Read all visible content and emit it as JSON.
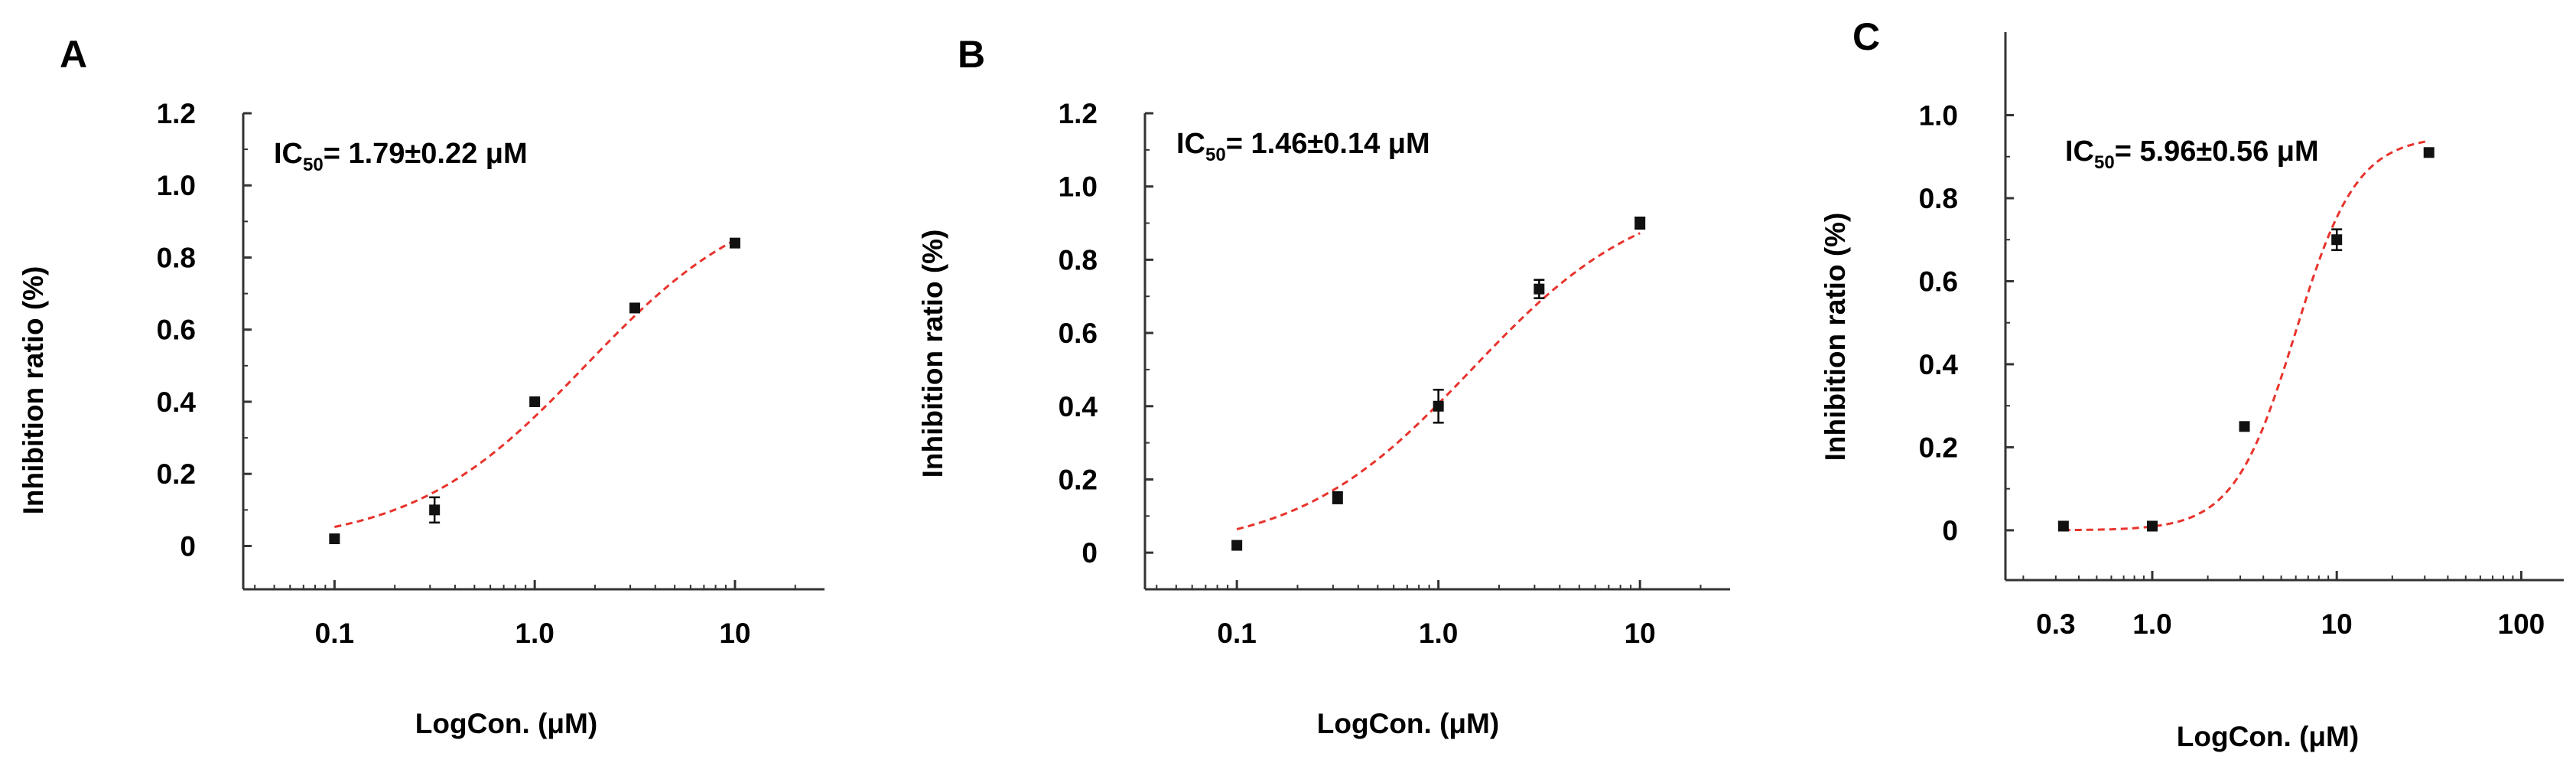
{
  "colors": {
    "axis": "#333333",
    "point": "#111111",
    "fit": "#e8332c"
  },
  "chart_data": [
    {
      "type": "scatter",
      "panel": "A",
      "title": "",
      "xlabel": "LogCon.  (μM)",
      "ylabel": "Inhibition  ratio (%)",
      "xscale": "log",
      "xlim": [
        0.035,
        28
      ],
      "ylim": [
        -0.12,
        1.2
      ],
      "xticks": [
        {
          "value": 0.1,
          "label": "0.1"
        },
        {
          "value": 1,
          "label": "1.0"
        },
        {
          "value": 10,
          "label": "10"
        }
      ],
      "yticks": [
        {
          "value": 0,
          "label": "0"
        },
        {
          "value": 0.2,
          "label": "0.2"
        },
        {
          "value": 0.4,
          "label": "0.4"
        },
        {
          "value": 0.6,
          "label": "0.6"
        },
        {
          "value": 0.8,
          "label": "0.8"
        },
        {
          "value": 1.0,
          "label": "1.0"
        },
        {
          "value": 1.2,
          "label": "1.2"
        }
      ],
      "annotation": {
        "prefix": "IC",
        "sub": "50",
        "text": "= 1.79±0.22 μM"
      },
      "points": [
        {
          "x": 0.1,
          "y": 0.02,
          "err": 0.0
        },
        {
          "x": 0.316,
          "y": 0.1,
          "err": 0.035
        },
        {
          "x": 1.0,
          "y": 0.4,
          "err": 0.0
        },
        {
          "x": 3.16,
          "y": 0.66,
          "err": 0.0
        },
        {
          "x": 10,
          "y": 0.84,
          "err": 0.0
        }
      ],
      "fit": {
        "bottom": 0.0,
        "top": 1.0,
        "ic50": 1.79,
        "hill": 1.0,
        "x_range": [
          0.1,
          10
        ]
      }
    },
    {
      "type": "scatter",
      "panel": "B",
      "title": "",
      "xlabel": "LogCon.  (μM)",
      "ylabel": "Inhibition  ratio (%)",
      "xscale": "log",
      "xlim": [
        0.035,
        28
      ],
      "ylim": [
        -0.1,
        1.2
      ],
      "xticks": [
        {
          "value": 0.1,
          "label": "0.1"
        },
        {
          "value": 1,
          "label": "1.0"
        },
        {
          "value": 10,
          "label": "10"
        }
      ],
      "yticks": [
        {
          "value": 0,
          "label": "0"
        },
        {
          "value": 0.2,
          "label": "0.2"
        },
        {
          "value": 0.4,
          "label": "0.4"
        },
        {
          "value": 0.6,
          "label": "0.6"
        },
        {
          "value": 0.8,
          "label": "0.8"
        },
        {
          "value": 1.0,
          "label": "1.0"
        },
        {
          "value": 1.2,
          "label": "1.2"
        }
      ],
      "annotation": {
        "prefix": "IC",
        "sub": "50",
        "text": "= 1.46±0.14 μM"
      },
      "points": [
        {
          "x": 0.1,
          "y": 0.02,
          "err": 0.0
        },
        {
          "x": 0.316,
          "y": 0.15,
          "err": 0.015
        },
        {
          "x": 1.0,
          "y": 0.4,
          "err": 0.045
        },
        {
          "x": 3.16,
          "y": 0.72,
          "err": 0.025
        },
        {
          "x": 10,
          "y": 0.9,
          "err": 0.015
        }
      ],
      "fit": {
        "bottom": 0.0,
        "top": 1.0,
        "ic50": 1.46,
        "hill": 1.0,
        "x_range": [
          0.1,
          10
        ]
      }
    },
    {
      "type": "scatter",
      "panel": "C",
      "title": "",
      "xlabel": "LogCon.  (μM)",
      "ylabel": "Inhibition  ratio (%)",
      "xscale": "log",
      "xlim": [
        0.16,
        170
      ],
      "ylim": [
        -0.12,
        1.2
      ],
      "xticks": [
        {
          "value": 0.3,
          "label": "0.3"
        },
        {
          "value": 1,
          "label": "1.0"
        },
        {
          "value": 10,
          "label": "10"
        },
        {
          "value": 100,
          "label": "100"
        }
      ],
      "yticks": [
        {
          "value": 0,
          "label": "0"
        },
        {
          "value": 0.2,
          "label": "0.2"
        },
        {
          "value": 0.4,
          "label": "0.4"
        },
        {
          "value": 0.6,
          "label": "0.6"
        },
        {
          "value": 0.8,
          "label": "0.8"
        },
        {
          "value": 1.0,
          "label": "1.0"
        }
      ],
      "annotation": {
        "prefix": "IC",
        "sub": "50",
        "text": "= 5.96±0.56 μM"
      },
      "points": [
        {
          "x": 0.33,
          "y": 0.01,
          "err": 0.0
        },
        {
          "x": 1.0,
          "y": 0.01,
          "err": 0.0
        },
        {
          "x": 3.16,
          "y": 0.25,
          "err": 0.0
        },
        {
          "x": 10,
          "y": 0.7,
          "err": 0.025
        },
        {
          "x": 31.6,
          "y": 0.91,
          "err": 0.0
        }
      ],
      "fit": {
        "bottom": 0.0,
        "top": 0.95,
        "ic50": 5.96,
        "hill": 2.6,
        "x_range": [
          0.33,
          31.6
        ]
      }
    }
  ]
}
